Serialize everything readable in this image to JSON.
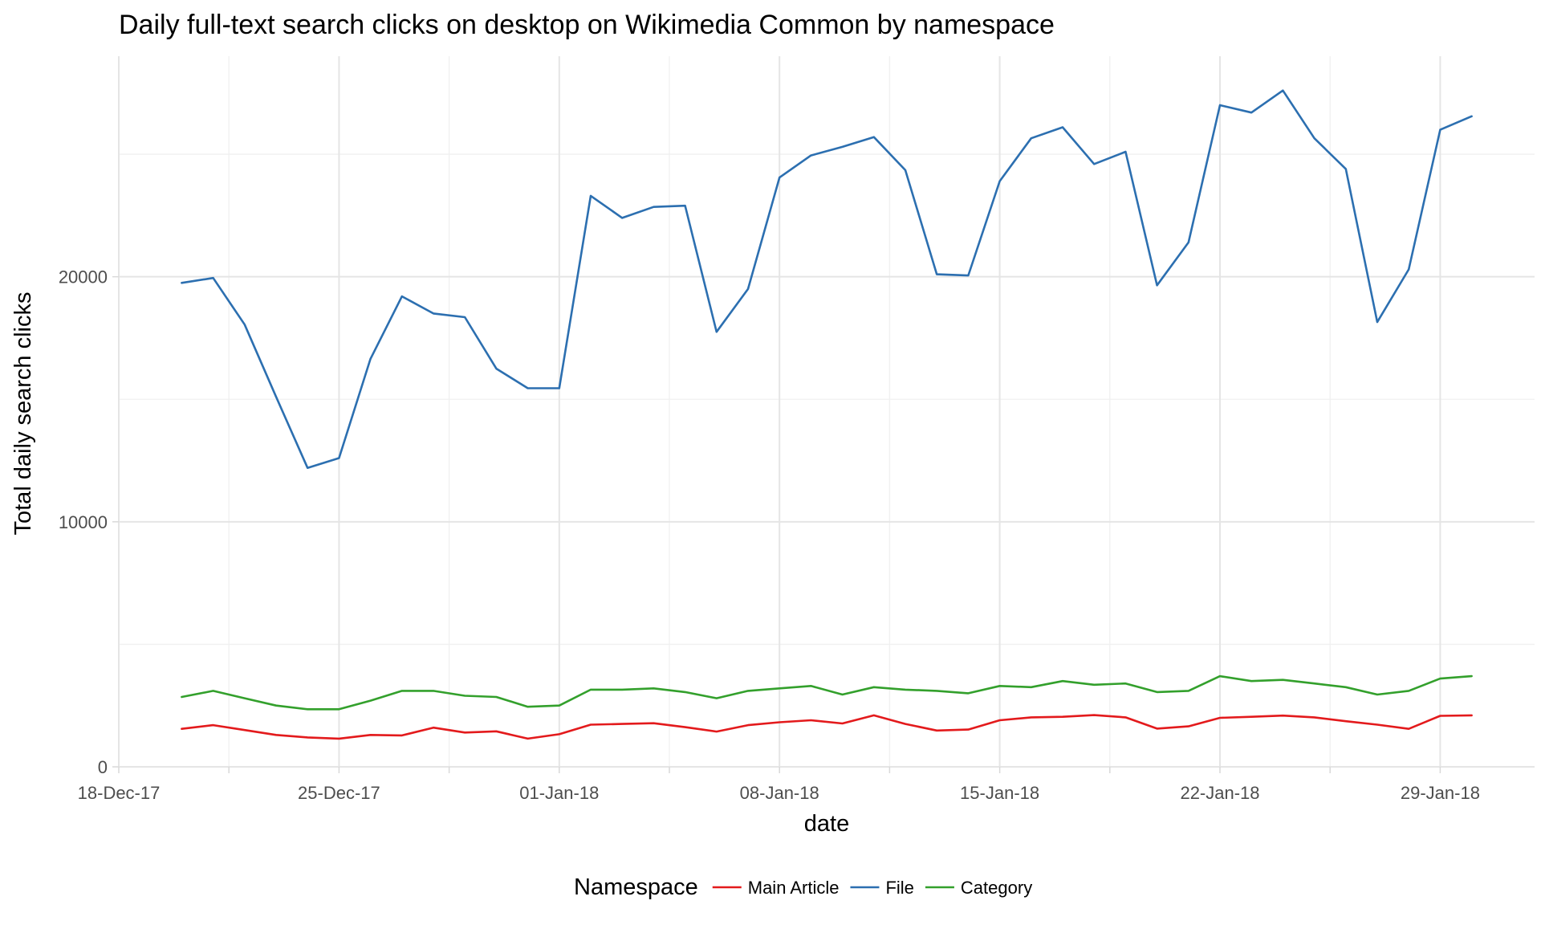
{
  "chart_data": {
    "type": "line",
    "title": "Daily full-text search clicks on desktop on Wikimedia Common by namespace",
    "xlabel": "date",
    "ylabel": "Total daily search clicks",
    "x_scale": "date",
    "x_range": [
      "2017-12-18",
      "2018-02-01"
    ],
    "xlim_note": "",
    "ylim": [
      0,
      29000
    ],
    "x_ticks": [
      {
        "date": "2017-12-18",
        "label": "18-Dec-17"
      },
      {
        "date": "2017-12-25",
        "label": "25-Dec-17"
      },
      {
        "date": "2018-01-01",
        "label": "01-Jan-18"
      },
      {
        "date": "2018-01-08",
        "label": "08-Jan-18"
      },
      {
        "date": "2018-01-15",
        "label": "15-Jan-18"
      },
      {
        "date": "2018-01-22",
        "label": "22-Jan-18"
      },
      {
        "date": "2018-01-29",
        "label": "29-Jan-18"
      }
    ],
    "y_ticks": [
      {
        "value": 0,
        "label": "0"
      },
      {
        "value": 10000,
        "label": "10000"
      },
      {
        "value": 20000,
        "label": "20000"
      }
    ],
    "grid": true,
    "legend": {
      "title": "Namespace",
      "position": "bottom"
    },
    "x": [
      "2017-12-20",
      "2017-12-21",
      "2017-12-22",
      "2017-12-23",
      "2017-12-24",
      "2017-12-25",
      "2017-12-26",
      "2017-12-27",
      "2017-12-28",
      "2017-12-29",
      "2017-12-30",
      "2017-12-31",
      "2018-01-01",
      "2018-01-02",
      "2018-01-03",
      "2018-01-04",
      "2018-01-05",
      "2018-01-06",
      "2018-01-07",
      "2018-01-08",
      "2018-01-09",
      "2018-01-10",
      "2018-01-11",
      "2018-01-12",
      "2018-01-13",
      "2018-01-14",
      "2018-01-15",
      "2018-01-16",
      "2018-01-17",
      "2018-01-18",
      "2018-01-19",
      "2018-01-20",
      "2018-01-21",
      "2018-01-22",
      "2018-01-23",
      "2018-01-24",
      "2018-01-25",
      "2018-01-26",
      "2018-01-27",
      "2018-01-28",
      "2018-01-29",
      "2018-01-30"
    ],
    "series": [
      {
        "name": "Main Article",
        "color": "#e31a1c",
        "values": [
          1550,
          1700,
          1500,
          1300,
          1200,
          1150,
          1300,
          1280,
          1600,
          1400,
          1450,
          1150,
          1330,
          1720,
          1750,
          1780,
          1620,
          1440,
          1700,
          1820,
          1900,
          1770,
          2100,
          1750,
          1480,
          1520,
          1900,
          2020,
          2040,
          2110,
          2020,
          1560,
          1650,
          2000,
          2040,
          2090,
          2020,
          1860,
          1720,
          1550,
          2080,
          2100
        ]
      },
      {
        "name": "File",
        "color": "#2c6fb0",
        "values": [
          19750,
          19950,
          18050,
          15100,
          12200,
          12600,
          16650,
          19200,
          18500,
          18350,
          16250,
          15450,
          15450,
          23300,
          22400,
          22850,
          22900,
          17750,
          19500,
          24050,
          24950,
          25300,
          25700,
          24350,
          20100,
          20050,
          23900,
          25650,
          26100,
          24600,
          25100,
          19650,
          21400,
          27000,
          26700,
          27600,
          25650,
          24400,
          18150,
          20300,
          26000,
          26550
        ]
      },
      {
        "name": "Category",
        "color": "#33a02c",
        "values": [
          2850,
          3100,
          2800,
          2500,
          2350,
          2350,
          2700,
          3100,
          3100,
          2900,
          2850,
          2450,
          2500,
          3150,
          3150,
          3200,
          3050,
          2800,
          3100,
          3200,
          3300,
          2950,
          3250,
          3150,
          3100,
          3000,
          3300,
          3250,
          3500,
          3350,
          3400,
          3050,
          3100,
          3700,
          3500,
          3550,
          3400,
          3250,
          2950,
          3100,
          3600,
          3700
        ]
      }
    ]
  }
}
